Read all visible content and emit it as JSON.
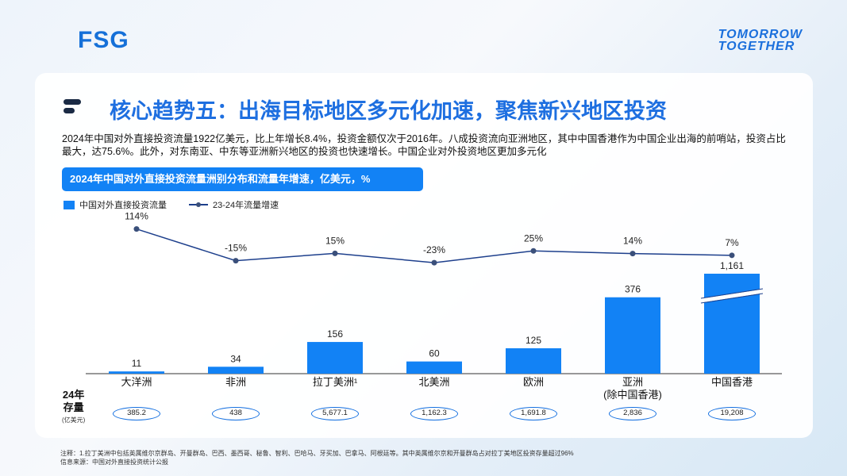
{
  "brand": {
    "logo": "FSG",
    "tagline_line1": "TOMORROW",
    "tagline_line2": "TOGETHER"
  },
  "title": "核心趋势五：出海目标地区多元化加速，聚焦新兴地区投资",
  "description": "2024年中国对外直接投资流量1922亿美元，比上年增长8.4%，投资金额仅次于2016年。八成投资流向亚洲地区，其中中国香港作为中国企业出海的前哨站，投资占比最大，达75.6%。此外，对东南亚、中东等亚洲新兴地区的投资也快速增长。中国企业对外投资地区更加多元化",
  "chart_data": {
    "type": "bar+line",
    "title": "2024年中国对外直接投资流量洲别分布和流量年增速，亿美元，%",
    "categories": [
      "大洋洲",
      "非洲",
      "拉丁美洲¹",
      "北美洲",
      "欧洲",
      "亚洲\n(除中国香港)",
      "中国香港"
    ],
    "series": [
      {
        "name": "中国对外直接投资流量",
        "type": "bar",
        "values": [
          11,
          34,
          156,
          60,
          125,
          376,
          1161
        ],
        "labels": [
          "11",
          "34",
          "156",
          "60",
          "125",
          "376",
          "1,161"
        ],
        "color": "#1282f5",
        "axis_break_on": "中国香港"
      },
      {
        "name": "23-24年流量增速",
        "type": "line",
        "values": [
          114,
          -15,
          15,
          -23,
          25,
          14,
          7
        ],
        "labels": [
          "114%",
          "-15%",
          "15%",
          "-23%",
          "25%",
          "14%",
          "7%"
        ],
        "color": "#1d3f8c"
      }
    ],
    "grid": false,
    "legend": "top-left"
  },
  "stock": {
    "label_line1": "24年",
    "label_line2": "存量",
    "unit": "(亿美元)",
    "values": [
      "385.2",
      "438",
      "5,677.1",
      "1,162.3",
      "1,691.8",
      "2,836",
      "19,208"
    ]
  },
  "notes": {
    "note": "注释：1.拉丁美洲中包括英属维尔京群岛、开曼群岛、巴西、墨西哥、秘鲁、智利、巴哈马、牙买加、巴拿马、阿根廷等。其中英属维尔京和开曼群岛占对拉丁美地区投资存量超过96%",
    "source": "信息来源：中国对外直接投资统计公报"
  }
}
